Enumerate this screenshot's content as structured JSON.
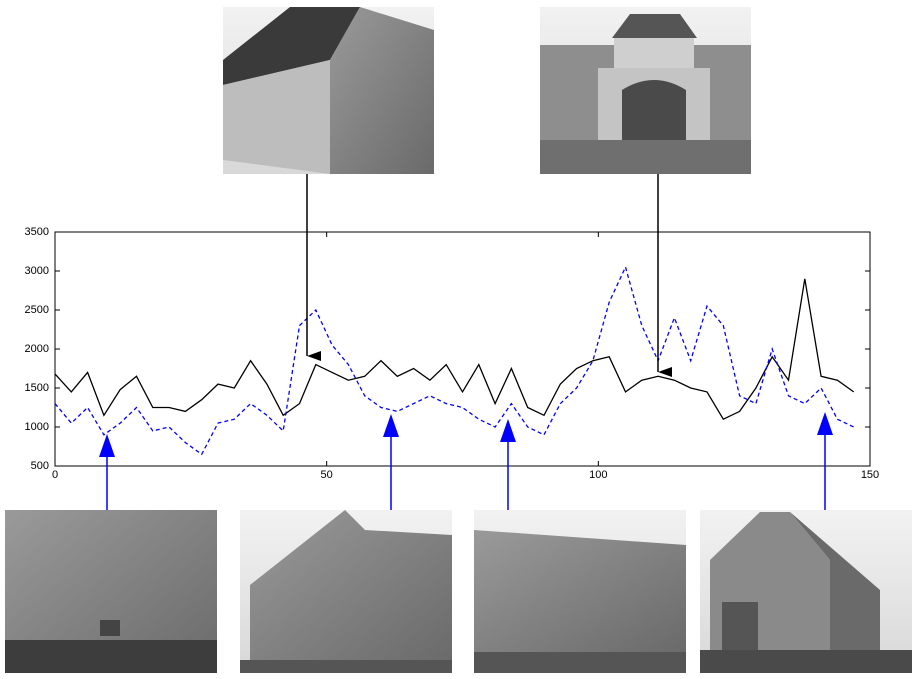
{
  "chart_data": {
    "type": "line",
    "x": [
      0,
      3,
      6,
      9,
      12,
      15,
      18,
      21,
      24,
      27,
      30,
      33,
      36,
      39,
      42,
      45,
      48,
      51,
      54,
      57,
      60,
      63,
      66,
      69,
      72,
      75,
      78,
      81,
      84,
      87,
      90,
      93,
      96,
      99,
      102,
      105,
      108,
      111,
      114,
      117,
      120,
      123,
      126,
      129,
      132,
      135,
      138,
      141,
      144,
      147
    ],
    "series": [
      {
        "color": "#000000",
        "style": "solid",
        "values": [
          1680,
          1450,
          1700,
          1150,
          1480,
          1650,
          1250,
          1250,
          1200,
          1350,
          1550,
          1500,
          1850,
          1550,
          1150,
          1300,
          1800,
          1700,
          1600,
          1650,
          1850,
          1650,
          1750,
          1600,
          1800,
          1450,
          1800,
          1300,
          1750,
          1250,
          1150,
          1550,
          1750,
          1850,
          1900,
          1450,
          1600,
          1650,
          1600,
          1500,
          1450,
          1100,
          1200,
          1500,
          1900,
          1600,
          2900,
          1650,
          1600,
          1450
        ]
      },
      {
        "color": "#0000ff",
        "style": "dashed",
        "values": [
          1300,
          1050,
          1250,
          900,
          1050,
          1250,
          950,
          1000,
          800,
          650,
          1050,
          1100,
          1300,
          1150,
          950,
          2300,
          2500,
          2050,
          1800,
          1400,
          1250,
          1200,
          1300,
          1400,
          1300,
          1250,
          1100,
          1000,
          1300,
          1000,
          900,
          1300,
          1500,
          1850,
          2600,
          3050,
          2300,
          1850,
          2400,
          1850,
          2550,
          2300,
          1400,
          1300,
          2000,
          1400,
          1300,
          1500,
          1100,
          1000
        ]
      }
    ],
    "xlim": [
      0,
      150
    ],
    "xticks": [
      0,
      50,
      100,
      150
    ],
    "ylim": [
      500,
      3500
    ],
    "yticks": [
      500,
      1000,
      1500,
      2000,
      2500,
      3000,
      3500
    ]
  }
}
